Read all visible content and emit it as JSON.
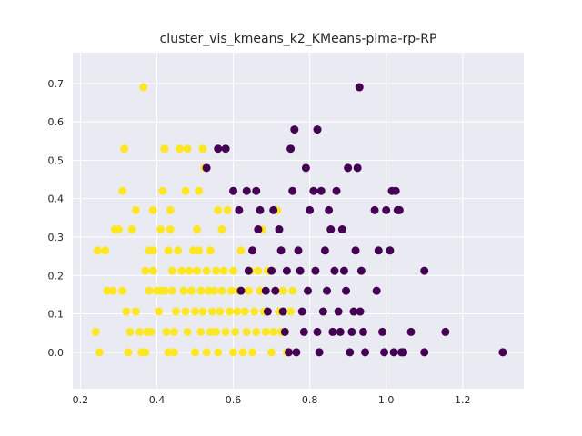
{
  "chart_data": {
    "type": "scatter",
    "title": "cluster_vis_kmeans_k2_KMeans-pima-rp-RP",
    "xlabel": "",
    "ylabel": "",
    "xlim": [
      0.18,
      1.36
    ],
    "ylim": [
      -0.095,
      0.78
    ],
    "xticks": [
      0.2,
      0.4,
      0.6,
      0.8,
      1.0,
      1.2
    ],
    "xtick_labels": [
      "0.2",
      "0.4",
      "0.6",
      "0.8",
      "1.0",
      "1.2"
    ],
    "yticks": [
      0.0,
      0.1,
      0.2,
      0.3,
      0.4,
      0.5,
      0.6,
      0.7
    ],
    "ytick_labels": [
      "0.0",
      "0.1",
      "0.2",
      "0.3",
      "0.4",
      "0.5",
      "0.6",
      "0.7"
    ],
    "grid": true,
    "background": "#eaeaf2",
    "series": [
      {
        "color": "#fde725",
        "points": [
          [
            0.25,
            0.0
          ],
          [
            0.24,
            0.053
          ],
          [
            0.245,
            0.265
          ],
          [
            0.265,
            0.265
          ],
          [
            0.27,
            0.16
          ],
          [
            0.285,
            0.16
          ],
          [
            0.29,
            0.32
          ],
          [
            0.3,
            0.32
          ],
          [
            0.31,
            0.16
          ],
          [
            0.31,
            0.42
          ],
          [
            0.315,
            0.53
          ],
          [
            0.32,
            0.106
          ],
          [
            0.325,
            0.0
          ],
          [
            0.33,
            0.053
          ],
          [
            0.335,
            0.32
          ],
          [
            0.345,
            0.37
          ],
          [
            0.345,
            0.106
          ],
          [
            0.355,
            0.053
          ],
          [
            0.36,
            0.0
          ],
          [
            0.365,
            0.69
          ],
          [
            0.37,
            0.0
          ],
          [
            0.37,
            0.212
          ],
          [
            0.375,
            0.053
          ],
          [
            0.38,
            0.16
          ],
          [
            0.38,
            0.265
          ],
          [
            0.385,
            0.053
          ],
          [
            0.39,
            0.37
          ],
          [
            0.39,
            0.265
          ],
          [
            0.39,
            0.212
          ],
          [
            0.4,
            0.16
          ],
          [
            0.405,
            0.106
          ],
          [
            0.41,
            0.16
          ],
          [
            0.41,
            0.32
          ],
          [
            0.415,
            0.42
          ],
          [
            0.42,
            0.53
          ],
          [
            0.42,
            0.16
          ],
          [
            0.425,
            0.053
          ],
          [
            0.43,
            0.265
          ],
          [
            0.43,
            0.0
          ],
          [
            0.435,
            0.37
          ],
          [
            0.435,
            0.32
          ],
          [
            0.44,
            0.16
          ],
          [
            0.44,
            0.212
          ],
          [
            0.445,
            0.053
          ],
          [
            0.445,
            0.0
          ],
          [
            0.45,
            0.106
          ],
          [
            0.455,
            0.265
          ],
          [
            0.46,
            0.53
          ],
          [
            0.465,
            0.212
          ],
          [
            0.47,
            0.16
          ],
          [
            0.475,
            0.42
          ],
          [
            0.475,
            0.106
          ],
          [
            0.48,
            0.53
          ],
          [
            0.48,
            0.053
          ],
          [
            0.485,
            0.212
          ],
          [
            0.49,
            0.16
          ],
          [
            0.495,
            0.265
          ],
          [
            0.5,
            0.0
          ],
          [
            0.5,
            0.106
          ],
          [
            0.505,
            0.32
          ],
          [
            0.505,
            0.212
          ],
          [
            0.51,
            0.42
          ],
          [
            0.51,
            0.265
          ],
          [
            0.515,
            0.16
          ],
          [
            0.515,
            0.053
          ],
          [
            0.52,
            0.106
          ],
          [
            0.52,
            0.53
          ],
          [
            0.525,
            0.48
          ],
          [
            0.53,
            0.212
          ],
          [
            0.53,
            0.0
          ],
          [
            0.535,
            0.16
          ],
          [
            0.54,
            0.265
          ],
          [
            0.54,
            0.053
          ],
          [
            0.545,
            0.106
          ],
          [
            0.55,
            0.16
          ],
          [
            0.555,
            0.212
          ],
          [
            0.555,
            0.053
          ],
          [
            0.56,
            0.37
          ],
          [
            0.56,
            0.0
          ],
          [
            0.565,
            0.106
          ],
          [
            0.57,
            0.16
          ],
          [
            0.57,
            0.32
          ],
          [
            0.575,
            0.212
          ],
          [
            0.58,
            0.053
          ],
          [
            0.585,
            0.37
          ],
          [
            0.59,
            0.106
          ],
          [
            0.595,
            0.16
          ],
          [
            0.6,
            0.0
          ],
          [
            0.6,
            0.212
          ],
          [
            0.605,
            0.053
          ],
          [
            0.61,
            0.106
          ],
          [
            0.615,
            0.16
          ],
          [
            0.62,
            0.265
          ],
          [
            0.625,
            0.0
          ],
          [
            0.63,
            0.106
          ],
          [
            0.635,
            0.053
          ],
          [
            0.64,
            0.16
          ],
          [
            0.645,
            0.212
          ],
          [
            0.65,
            0.0
          ],
          [
            0.655,
            0.106
          ],
          [
            0.66,
            0.053
          ],
          [
            0.665,
            0.212
          ],
          [
            0.67,
            0.16
          ],
          [
            0.675,
            0.32
          ],
          [
            0.68,
            0.106
          ],
          [
            0.685,
            0.053
          ],
          [
            0.69,
            0.212
          ],
          [
            0.7,
            0.0
          ],
          [
            0.705,
            0.053
          ],
          [
            0.715,
            0.37
          ],
          [
            0.72,
            0.106
          ],
          [
            0.725,
            0.053
          ],
          [
            0.73,
            0.16
          ],
          [
            0.735,
            0.053
          ],
          [
            0.74,
            0.0
          ],
          [
            0.745,
            0.0
          ],
          [
            0.75,
            0.106
          ],
          [
            0.755,
            0.16
          ]
        ]
      },
      {
        "color": "#440154",
        "points": [
          [
            0.53,
            0.48
          ],
          [
            0.56,
            0.53
          ],
          [
            0.58,
            0.53
          ],
          [
            0.6,
            0.42
          ],
          [
            0.615,
            0.37
          ],
          [
            0.62,
            0.16
          ],
          [
            0.635,
            0.42
          ],
          [
            0.64,
            0.212
          ],
          [
            0.65,
            0.265
          ],
          [
            0.66,
            0.42
          ],
          [
            0.665,
            0.32
          ],
          [
            0.67,
            0.37
          ],
          [
            0.685,
            0.16
          ],
          [
            0.69,
            0.106
          ],
          [
            0.7,
            0.212
          ],
          [
            0.705,
            0.37
          ],
          [
            0.71,
            0.16
          ],
          [
            0.72,
            0.32
          ],
          [
            0.725,
            0.265
          ],
          [
            0.73,
            0.106
          ],
          [
            0.735,
            0.053
          ],
          [
            0.74,
            0.212
          ],
          [
            0.745,
            0.0
          ],
          [
            0.75,
            0.53
          ],
          [
            0.755,
            0.42
          ],
          [
            0.76,
            0.58
          ],
          [
            0.765,
            0.0
          ],
          [
            0.77,
            0.265
          ],
          [
            0.775,
            0.212
          ],
          [
            0.78,
            0.106
          ],
          [
            0.785,
            0.053
          ],
          [
            0.79,
            0.48
          ],
          [
            0.795,
            0.16
          ],
          [
            0.8,
            0.37
          ],
          [
            0.81,
            0.42
          ],
          [
            0.815,
            0.212
          ],
          [
            0.82,
            0.58
          ],
          [
            0.82,
            0.053
          ],
          [
            0.825,
            0.0
          ],
          [
            0.83,
            0.42
          ],
          [
            0.835,
            0.106
          ],
          [
            0.84,
            0.265
          ],
          [
            0.845,
            0.16
          ],
          [
            0.85,
            0.37
          ],
          [
            0.855,
            0.32
          ],
          [
            0.86,
            0.053
          ],
          [
            0.865,
            0.212
          ],
          [
            0.87,
            0.42
          ],
          [
            0.875,
            0.106
          ],
          [
            0.88,
            0.053
          ],
          [
            0.885,
            0.32
          ],
          [
            0.89,
            0.212
          ],
          [
            0.895,
            0.16
          ],
          [
            0.9,
            0.48
          ],
          [
            0.905,
            0.0
          ],
          [
            0.91,
            0.053
          ],
          [
            0.915,
            0.106
          ],
          [
            0.92,
            0.265
          ],
          [
            0.925,
            0.48
          ],
          [
            0.93,
            0.69
          ],
          [
            0.932,
            0.106
          ],
          [
            0.935,
            0.212
          ],
          [
            0.94,
            0.053
          ],
          [
            0.945,
            0.0
          ],
          [
            0.97,
            0.37
          ],
          [
            0.975,
            0.16
          ],
          [
            0.98,
            0.265
          ],
          [
            0.99,
            0.053
          ],
          [
            0.995,
            0.0
          ],
          [
            1.0,
            0.37
          ],
          [
            1.01,
            0.265
          ],
          [
            1.015,
            0.42
          ],
          [
            1.02,
            0.0
          ],
          [
            1.025,
            0.42
          ],
          [
            1.03,
            0.37
          ],
          [
            1.035,
            0.37
          ],
          [
            1.04,
            0.0
          ],
          [
            1.045,
            0.0
          ],
          [
            1.065,
            0.053
          ],
          [
            1.1,
            0.212
          ],
          [
            1.1,
            0.0
          ],
          [
            1.155,
            0.053
          ],
          [
            1.305,
            0.0
          ]
        ]
      }
    ]
  }
}
